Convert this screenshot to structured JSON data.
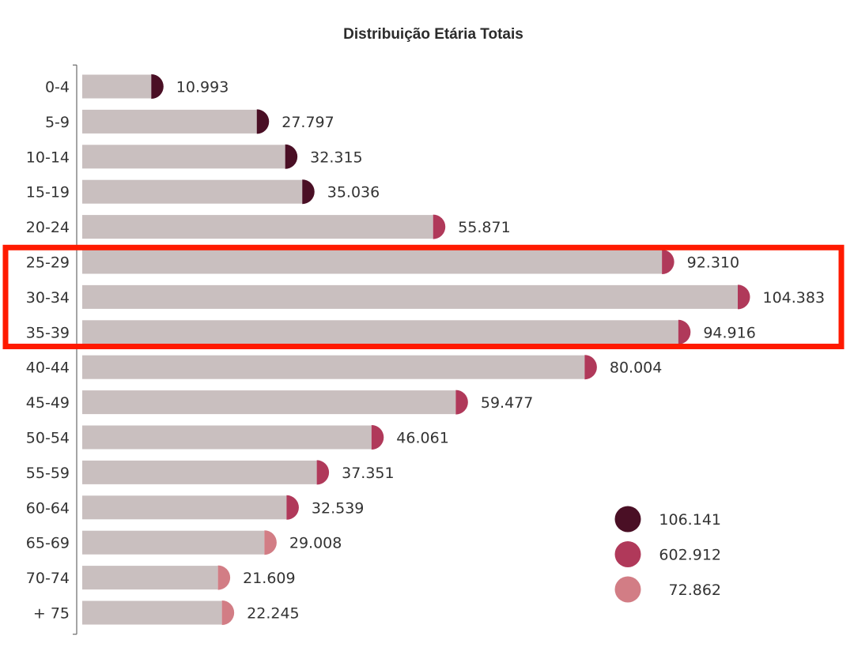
{
  "chart_data": {
    "type": "bar",
    "orientation": "horizontal",
    "title": "Distribuição Etária Totais",
    "xlabel": "",
    "ylabel": "",
    "categories": [
      "0-4",
      "5-9",
      "10-14",
      "15-19",
      "20-24",
      "25-29",
      "30-34",
      "35-39",
      "40-44",
      "45-49",
      "50-54",
      "55-59",
      "60-64",
      "65-69",
      "70-74",
      "+ 75"
    ],
    "values": [
      10993,
      27797,
      32315,
      35036,
      55871,
      92310,
      104383,
      94916,
      80004,
      59477,
      46061,
      37351,
      32539,
      29008,
      21609,
      22245
    ],
    "value_labels": [
      "10.993",
      "27.797",
      "32.315",
      "35.036",
      "55.871",
      "92.310",
      "104.383",
      "94.916",
      "80.004",
      "59.477",
      "46.061",
      "37.351",
      "32.539",
      "29.008",
      "21.609",
      "22.245"
    ],
    "group": [
      0,
      0,
      0,
      0,
      1,
      1,
      1,
      1,
      1,
      1,
      1,
      1,
      1,
      2,
      2,
      2
    ],
    "xlim": [
      0,
      105000
    ],
    "grid": false,
    "legend_position": "bottom-right",
    "legend": [
      {
        "label": "106.141",
        "color": "#4a0f25"
      },
      {
        "label": "602.912",
        "color": "#b0395a"
      },
      {
        "label": "72.862",
        "color": "#d27d85"
      }
    ],
    "bar_color": "#c9bfbf",
    "highlight": {
      "categories": [
        "25-29",
        "30-34",
        "35-39"
      ],
      "color": "#ff1a00"
    }
  }
}
